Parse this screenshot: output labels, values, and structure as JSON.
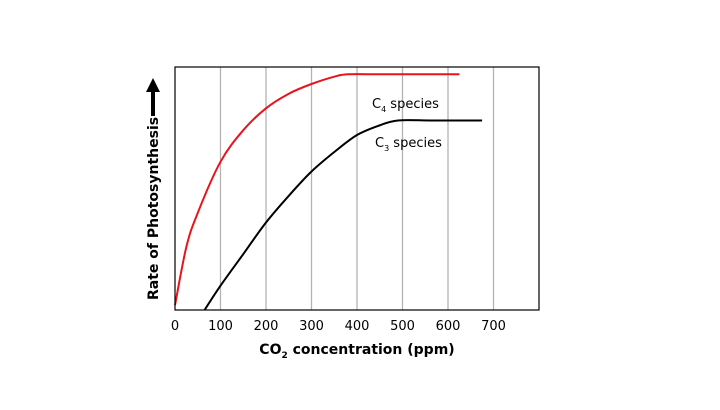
{
  "chart_data": {
    "type": "line",
    "title": "",
    "xlabel": {
      "prefix": "CO",
      "sub": "2",
      "suffix": " concentration (ppm)"
    },
    "ylabel": "Rate of Photosynthesis",
    "xlim": [
      0,
      800
    ],
    "ylim": [
      0,
      1.0
    ],
    "x_ticks": [
      0,
      100,
      200,
      300,
      400,
      500,
      600,
      700
    ],
    "gridlines": "vertical",
    "series": [
      {
        "name": "C4 species",
        "label": {
          "prefix": "C",
          "sub": "4",
          "suffix": " species"
        },
        "color": "#e8141b",
        "x": [
          0,
          25,
          50,
          100,
          150,
          200,
          250,
          300,
          350,
          380,
          450,
          550,
          625
        ],
        "y": [
          0.02,
          0.26,
          0.4,
          0.61,
          0.74,
          0.83,
          0.89,
          0.93,
          0.96,
          0.97,
          0.97,
          0.97,
          0.97
        ]
      },
      {
        "name": "C3 species",
        "label": {
          "prefix": "C",
          "sub": "3",
          "suffix": " species"
        },
        "color": "#000000",
        "x": [
          65,
          100,
          150,
          200,
          250,
          300,
          350,
          400,
          450,
          490,
          560,
          620,
          675
        ],
        "y": [
          0.0,
          0.1,
          0.23,
          0.36,
          0.47,
          0.57,
          0.65,
          0.72,
          0.76,
          0.78,
          0.78,
          0.78,
          0.78
        ]
      }
    ],
    "annotation": {
      "text": "↑",
      "meaning": "increasing rate"
    }
  }
}
